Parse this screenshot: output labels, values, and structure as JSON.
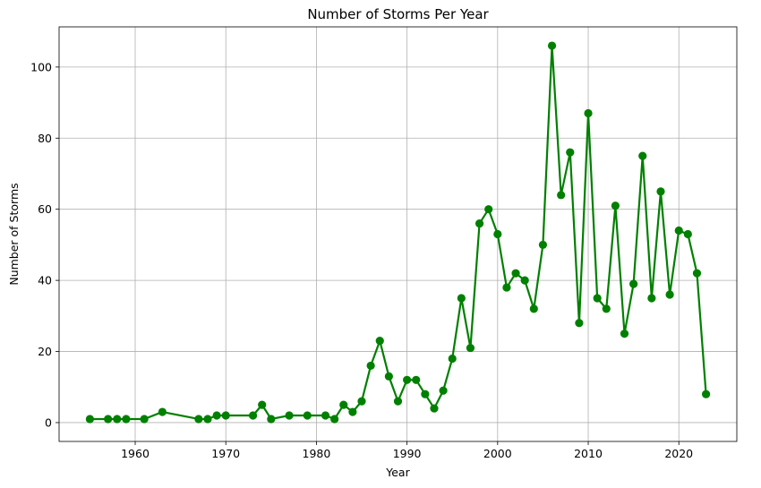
{
  "chart_data": {
    "type": "line",
    "title": "Number of Storms Per Year",
    "xlabel": "Year",
    "ylabel": "Number of Storms",
    "xlim": [
      1951.6,
      2026.4
    ],
    "ylim": [
      -5.3,
      111.3
    ],
    "xticks": [
      1960,
      1970,
      1980,
      1990,
      2000,
      2010,
      2020
    ],
    "yticks": [
      0,
      20,
      40,
      60,
      80,
      100
    ],
    "grid": true,
    "color": "#008000",
    "marker": "circle",
    "x": [
      1955,
      1957,
      1958,
      1959,
      1961,
      1963,
      1967,
      1968,
      1969,
      1970,
      1973,
      1974,
      1975,
      1977,
      1979,
      1981,
      1982,
      1983,
      1984,
      1985,
      1986,
      1987,
      1988,
      1989,
      1990,
      1991,
      1992,
      1993,
      1994,
      1995,
      1996,
      1997,
      1998,
      1999,
      2000,
      2001,
      2002,
      2003,
      2004,
      2005,
      2006,
      2007,
      2008,
      2009,
      2010,
      2011,
      2012,
      2013,
      2014,
      2015,
      2016,
      2017,
      2018,
      2019,
      2020,
      2021,
      2022,
      2023
    ],
    "y": [
      1,
      1,
      1,
      1,
      1,
      3,
      1,
      1,
      2,
      2,
      2,
      5,
      1,
      2,
      2,
      2,
      1,
      5,
      3,
      6,
      16,
      23,
      13,
      6,
      12,
      12,
      8,
      4,
      9,
      18,
      35,
      21,
      56,
      60,
      53,
      38,
      42,
      40,
      32,
      50,
      106,
      64,
      76,
      28,
      87,
      35,
      32,
      61,
      25,
      39,
      75,
      35,
      65,
      36,
      54,
      53,
      42,
      8
    ]
  }
}
